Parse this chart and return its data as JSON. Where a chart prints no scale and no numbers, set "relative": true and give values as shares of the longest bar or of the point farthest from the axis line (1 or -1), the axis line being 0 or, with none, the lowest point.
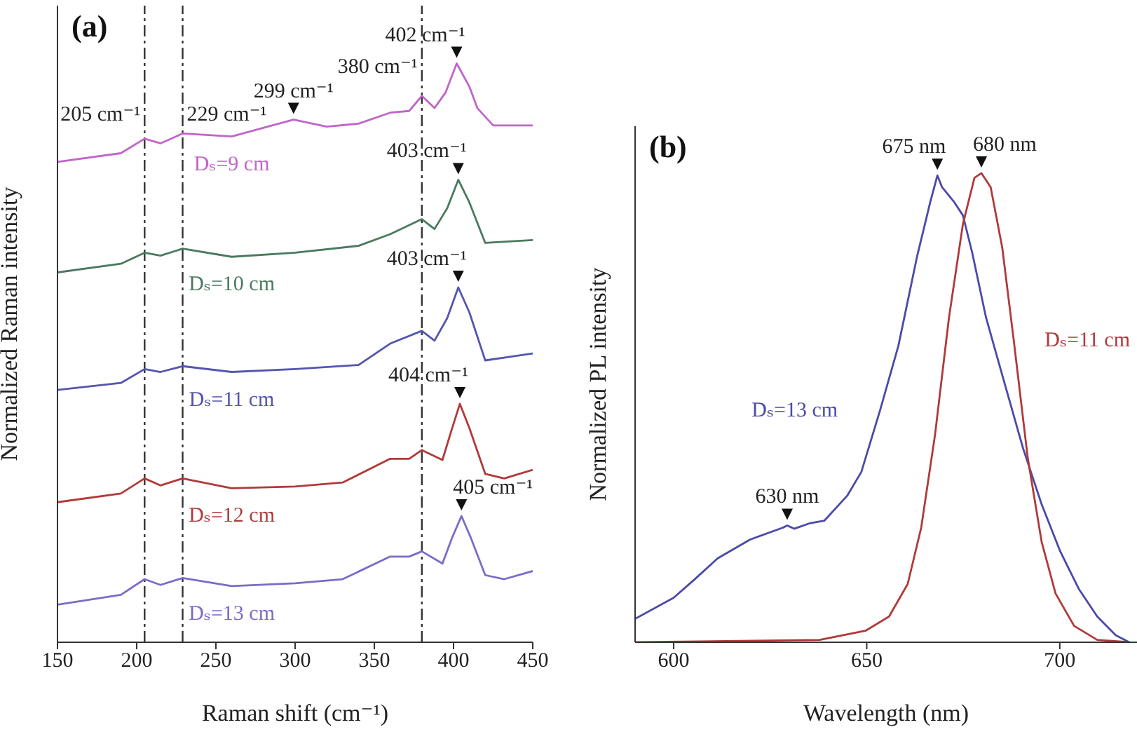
{
  "chart_data": [
    {
      "type": "line",
      "title": "(a)",
      "xlabel": "Raman shift (cm⁻¹)",
      "ylabel": "Normalized Raman intensity",
      "relative": true,
      "xlim": [
        150,
        450
      ],
      "xticks": [
        150,
        200,
        250,
        300,
        350,
        400,
        450
      ],
      "series": [
        {
          "name": "Dₛ=9 cm",
          "color": "#c066c8",
          "x": [
            150,
            190,
            205,
            215,
            229,
            260,
            299,
            320,
            340,
            360,
            372,
            380,
            388,
            395,
            402,
            410,
            415,
            425,
            450
          ],
          "values": [
            0.83,
            0.845,
            0.87,
            0.862,
            0.879,
            0.874,
            0.903,
            0.891,
            0.896,
            0.915,
            0.918,
            0.944,
            0.923,
            0.95,
            1.0,
            0.96,
            0.923,
            0.893,
            0.893
          ]
        },
        {
          "name": "Dₛ=10 cm",
          "color": "#4a7a5e",
          "x": [
            150,
            190,
            205,
            215,
            229,
            260,
            300,
            340,
            360,
            380,
            388,
            396,
            403,
            410,
            420,
            450
          ],
          "values": [
            0.639,
            0.654,
            0.673,
            0.668,
            0.68,
            0.666,
            0.673,
            0.685,
            0.705,
            0.731,
            0.714,
            0.75,
            0.799,
            0.76,
            0.69,
            0.695
          ]
        },
        {
          "name": "Dₛ=11 cm",
          "color": "#5555b0",
          "x": [
            150,
            190,
            205,
            215,
            229,
            260,
            300,
            340,
            360,
            380,
            388,
            396,
            403,
            410,
            420,
            450
          ],
          "values": [
            0.436,
            0.448,
            0.472,
            0.467,
            0.477,
            0.467,
            0.472,
            0.479,
            0.516,
            0.538,
            0.521,
            0.56,
            0.613,
            0.57,
            0.487,
            0.499
          ]
        },
        {
          "name": "Dₛ=12 cm",
          "color": "#b03a3a",
          "x": [
            150,
            190,
            205,
            215,
            229,
            260,
            300,
            330,
            360,
            372,
            380,
            393,
            398,
            404,
            410,
            420,
            432,
            450
          ],
          "values": [
            0.242,
            0.257,
            0.283,
            0.271,
            0.283,
            0.266,
            0.269,
            0.276,
            0.317,
            0.317,
            0.332,
            0.315,
            0.36,
            0.412,
            0.37,
            0.291,
            0.283,
            0.298
          ]
        },
        {
          "name": "Dₛ=13 cm",
          "color": "#7a6cc8",
          "x": [
            150,
            190,
            205,
            215,
            229,
            260,
            300,
            330,
            360,
            372,
            380,
            393,
            399,
            405,
            411,
            420,
            432,
            450
          ],
          "values": [
            0.065,
            0.082,
            0.109,
            0.099,
            0.111,
            0.097,
            0.102,
            0.109,
            0.148,
            0.148,
            0.157,
            0.136,
            0.18,
            0.218,
            0.18,
            0.116,
            0.109,
            0.123
          ]
        }
      ],
      "ref_lines": [
        {
          "axis": "x",
          "value": 205,
          "label": "205 cm⁻¹",
          "line_style": "dashed",
          "color": "#333333"
        },
        {
          "axis": "x",
          "value": 229,
          "label": "229 cm⁻¹",
          "line_style": "dashed",
          "color": "#333333"
        },
        {
          "axis": "x",
          "value": 380,
          "label": "380 cm⁻¹",
          "line_style": "dashed",
          "color": "#333333"
        }
      ],
      "annotations": [
        {
          "text": "299 cm⁻¹",
          "x": 299,
          "y": 0.903
        },
        {
          "text": "402 cm⁻¹",
          "x": 402,
          "y": 1.0
        },
        {
          "text": "403 cm⁻¹",
          "x": 403,
          "y": 0.799
        },
        {
          "text": "403 cm⁻¹",
          "x": 403,
          "y": 0.613
        },
        {
          "text": "404 cm⁻¹",
          "x": 404,
          "y": 0.412
        },
        {
          "text": "405 cm⁻¹",
          "x": 405,
          "y": 0.218
        }
      ]
    },
    {
      "type": "line",
      "title": "(b)",
      "xlabel": "Wavelength (nm)",
      "ylabel": "Normalized PL intensity",
      "relative": true,
      "xlim": [
        590,
        720
      ],
      "xticks": [
        600,
        650,
        700
      ],
      "series": [
        {
          "name": "Dₛ=13 cm",
          "color": "#4b4aa8",
          "x": [
            590,
            600,
            605.4,
            611.4,
            619.8,
            628.2,
            629.4,
            631.2,
            635.4,
            639,
            645,
            648.6,
            653.4,
            658.2,
            663,
            666.5,
            668.3,
            669.5,
            672.5,
            674.9,
            677.3,
            680.9,
            685.7,
            690.5,
            695.3,
            700.1,
            704.9,
            709.7,
            714.5,
            718
          ],
          "values": [
            0.05,
            0.095,
            0.134,
            0.179,
            0.219,
            0.244,
            0.249,
            0.242,
            0.254,
            0.259,
            0.313,
            0.363,
            0.493,
            0.632,
            0.821,
            0.94,
            0.995,
            0.97,
            0.94,
            0.91,
            0.831,
            0.692,
            0.552,
            0.413,
            0.294,
            0.194,
            0.114,
            0.055,
            0.015,
            0
          ]
        },
        {
          "name": "Dₛ=11 cm",
          "color": "#b03a3a",
          "x": [
            590,
            637.8,
            649.8,
            655.8,
            660.6,
            664.1,
            667.7,
            671.3,
            674.9,
            677.9,
            679.7,
            682.1,
            685.1,
            688.1,
            691.7,
            695.3,
            698.9,
            703.7,
            709.7,
            718
          ],
          "values": [
            0,
            0.005,
            0.025,
            0.055,
            0.124,
            0.244,
            0.443,
            0.692,
            0.891,
            0.99,
            1.0,
            0.97,
            0.841,
            0.642,
            0.393,
            0.214,
            0.104,
            0.035,
            0.005,
            0
          ]
        }
      ],
      "annotations": [
        {
          "text": "630 nm",
          "x": 629.4,
          "y": 0.249
        },
        {
          "text": "675 nm",
          "x": 668.3,
          "y": 0.995
        },
        {
          "text": "680 nm",
          "x": 679.7,
          "y": 1.0
        }
      ]
    }
  ]
}
